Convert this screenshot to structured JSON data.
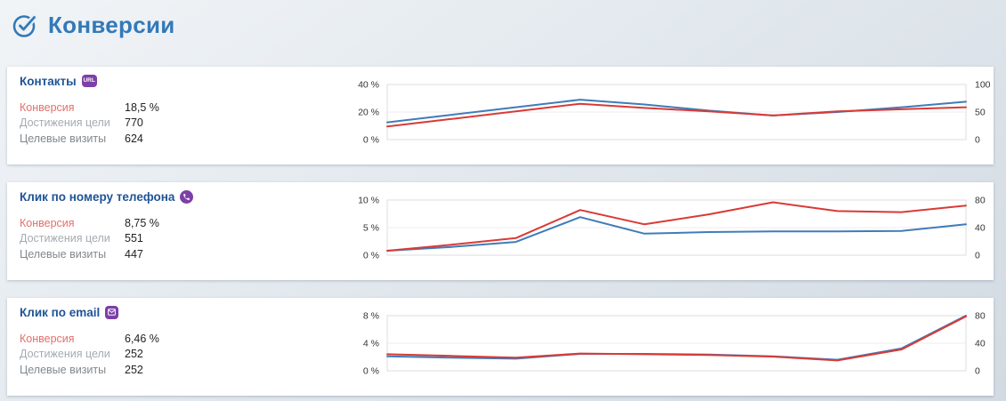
{
  "page": {
    "title": "Конверсии"
  },
  "colors": {
    "header_blue": "#3379b8",
    "card_title_blue": "#1f5496",
    "conversion_red": "#e2706c",
    "line_red": "#d93a36",
    "line_blue": "#3f7cb8",
    "icon_purple": "#7d3fa8"
  },
  "cards": [
    {
      "title": "Контакты",
      "icon": "url-badge",
      "icon_label": "URL",
      "stats": [
        {
          "label": "Конверсия",
          "value": "18,5 %"
        },
        {
          "label": "Достижения цели",
          "value": "770"
        },
        {
          "label": "Целевые визиты",
          "value": "624"
        }
      ]
    },
    {
      "title": "Клик по номеру телефона",
      "icon": "phone",
      "stats": [
        {
          "label": "Конверсия",
          "value": "8,75 %"
        },
        {
          "label": "Достижения цели",
          "value": "551"
        },
        {
          "label": "Целевые визиты",
          "value": "447"
        }
      ]
    },
    {
      "title": "Клик по email",
      "icon": "email",
      "stats": [
        {
          "label": "Конверсия",
          "value": "6,46 %"
        },
        {
          "label": "Достижения цели",
          "value": "252"
        },
        {
          "label": "Целевые визиты",
          "value": "252"
        }
      ]
    }
  ],
  "chart_data": [
    {
      "type": "line",
      "title": "Контакты — конверсия",
      "x_count": 10,
      "ylim": [
        0,
        40
      ],
      "right_ylim": [
        0,
        100
      ],
      "left_ticks": [
        "40 %",
        "20 %",
        "0 %"
      ],
      "right_ticks": [
        "100",
        "50",
        "0"
      ],
      "grid": "horizontal-mid",
      "legend": "none",
      "series": [
        {
          "name": "blue-line",
          "color": "#3f7cb8",
          "values": [
            12.5,
            18,
            23.5,
            29,
            25.5,
            21,
            17.5,
            20,
            23.5,
            27.5
          ]
        },
        {
          "name": "red-line",
          "color": "#d93a36",
          "values": [
            9.5,
            15,
            20.5,
            26,
            23,
            20.5,
            17.5,
            20.5,
            22,
            23.5
          ]
        }
      ]
    },
    {
      "type": "line",
      "title": "Клик по номеру телефона — конверсия",
      "x_count": 10,
      "ylim": [
        0,
        10
      ],
      "right_ylim": [
        0,
        80
      ],
      "left_ticks": [
        "10 %",
        "5 %",
        "0 %"
      ],
      "right_ticks": [
        "80",
        "40",
        "0"
      ],
      "grid": "horizontal-mid",
      "legend": "none",
      "series": [
        {
          "name": "blue-line",
          "color": "#3f7cb8",
          "values": [
            0.8,
            1.5,
            2.4,
            6.9,
            3.9,
            4.2,
            4.3,
            4.3,
            4.4,
            5.6
          ]
        },
        {
          "name": "red-line",
          "color": "#d93a36",
          "values": [
            0.8,
            1.9,
            3.1,
            8.2,
            5.6,
            7.4,
            9.6,
            8.0,
            7.8,
            9.0
          ]
        }
      ]
    },
    {
      "type": "line",
      "title": "Клик по email — конверсия",
      "x_count": 10,
      "ylim": [
        0,
        8
      ],
      "right_ylim": [
        0,
        80
      ],
      "left_ticks": [
        "8 %",
        "4 %",
        "0 %"
      ],
      "right_ticks": [
        "80",
        "40",
        "0"
      ],
      "grid": "horizontal-mid",
      "legend": "none",
      "series": [
        {
          "name": "blue-line",
          "color": "#3f7cb8",
          "values": [
            2.1,
            1.9,
            1.75,
            2.45,
            2.45,
            2.35,
            2.1,
            1.6,
            3.25,
            8.0
          ]
        },
        {
          "name": "red-line",
          "color": "#d93a36",
          "values": [
            2.4,
            2.15,
            1.9,
            2.5,
            2.4,
            2.3,
            2.05,
            1.5,
            3.1,
            7.9
          ]
        }
      ]
    }
  ]
}
